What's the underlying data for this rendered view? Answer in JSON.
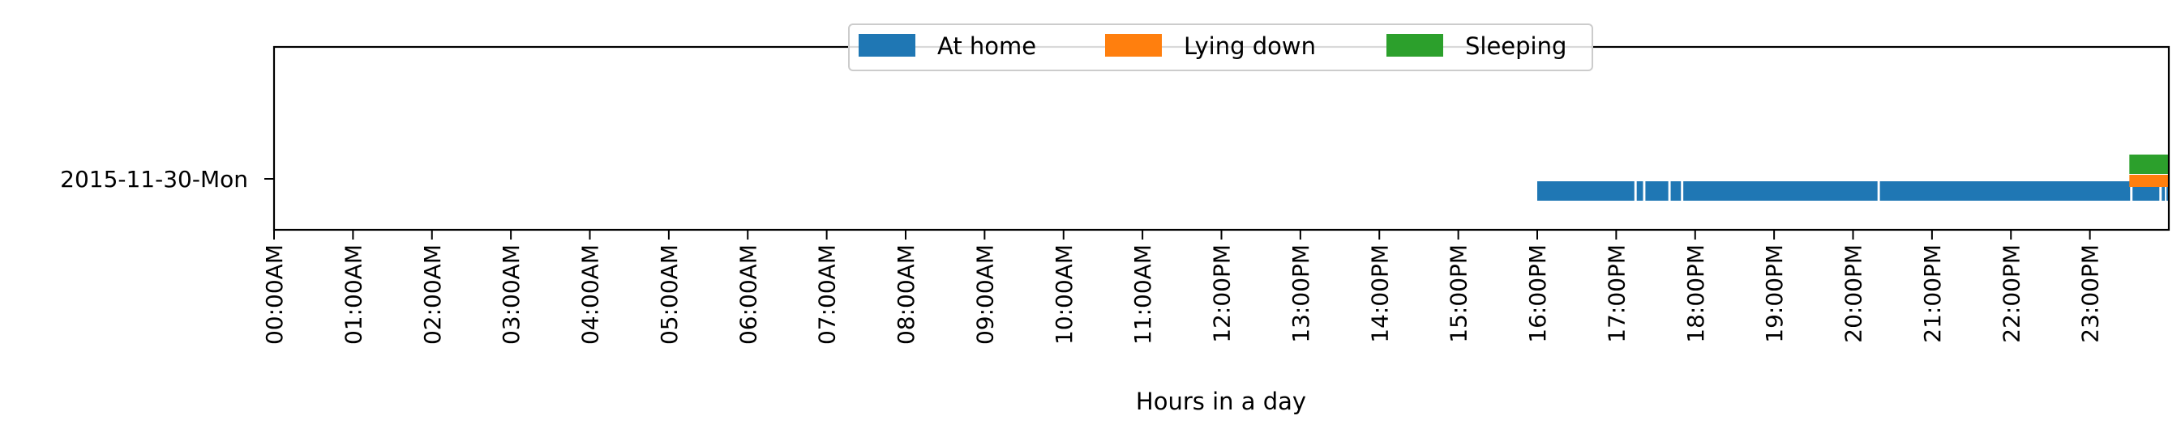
{
  "chart_data": {
    "type": "bar",
    "orientation": "horizontal-timeline",
    "title": "",
    "xlabel": "Hours in a day",
    "ylabel": "",
    "xlim": [
      0,
      24
    ],
    "x_tick_labels": [
      "00:00AM",
      "01:00AM",
      "02:00AM",
      "03:00AM",
      "04:00AM",
      "05:00AM",
      "06:00AM",
      "07:00AM",
      "08:00AM",
      "09:00AM",
      "10:00AM",
      "11:00AM",
      "12:00PM",
      "13:00PM",
      "14:00PM",
      "15:00PM",
      "16:00PM",
      "17:00PM",
      "18:00PM",
      "19:00PM",
      "20:00PM",
      "21:00PM",
      "22:00PM",
      "23:00PM"
    ],
    "categories": [
      "2015-11-30-Mon"
    ],
    "legend_position": "top-center",
    "grid": false,
    "series": [
      {
        "name": "At home",
        "color": "#1f77b4",
        "intervals": [
          [
            16.0,
            17.23
          ],
          [
            17.26,
            17.34
          ],
          [
            17.37,
            17.66
          ],
          [
            17.69,
            17.82
          ],
          [
            17.85,
            20.31
          ],
          [
            20.34,
            23.51
          ],
          [
            23.54,
            23.88
          ],
          [
            23.91,
            23.95
          ],
          [
            23.97,
            24.0
          ]
        ]
      },
      {
        "name": "Lying down",
        "color": "#ff7f0e",
        "intervals": [
          [
            23.5,
            24.0
          ]
        ]
      },
      {
        "name": "Sleeping",
        "color": "#2ca02c",
        "intervals": [
          [
            23.5,
            24.0
          ]
        ]
      }
    ]
  }
}
